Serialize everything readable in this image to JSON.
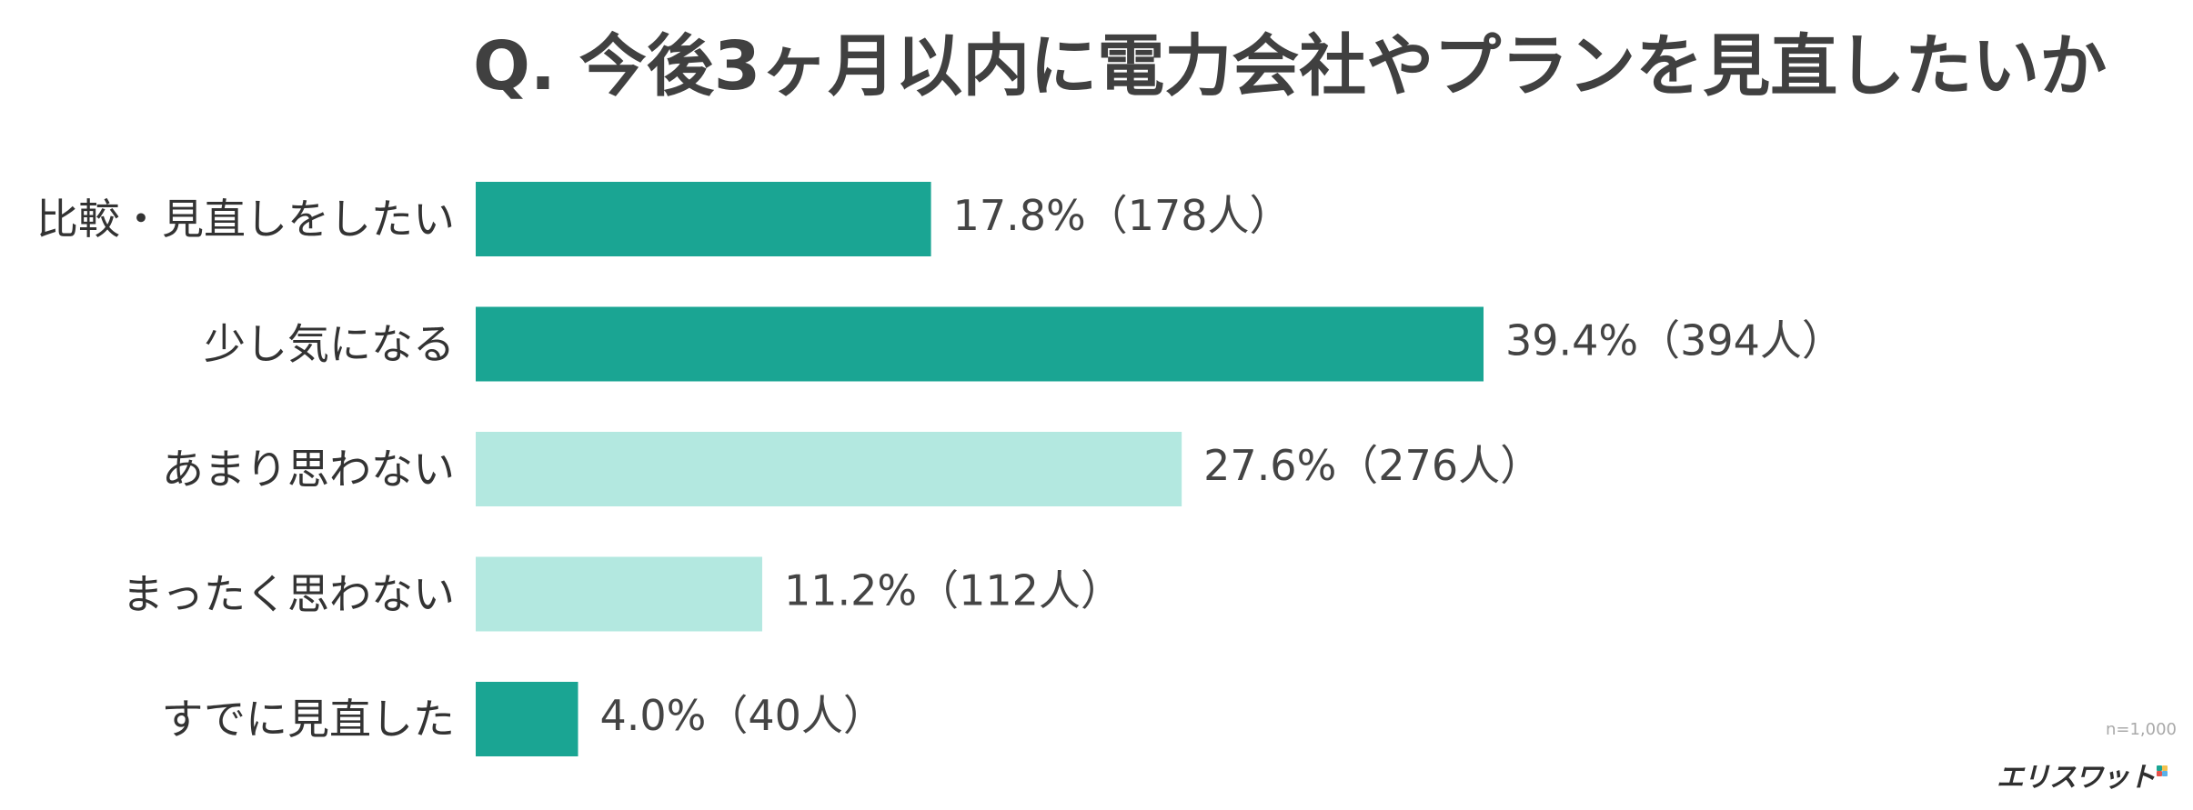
{
  "chart_data": {
    "type": "bar",
    "orientation": "horizontal",
    "title": "Q. 今後3ヶ月以内に電力会社やプランを見直したいか",
    "categories": [
      "比較・見直しをしたい",
      "少し気になる",
      "あまり思わない",
      "まったく思わない",
      "すでに見直した"
    ],
    "values": [
      17.8,
      39.4,
      27.6,
      11.2,
      4.0
    ],
    "value_labels": [
      "17.8%（178人）",
      "39.4%（394人）",
      "27.6%（276人）",
      "11.2%（112人）",
      "4.0%（40人）"
    ],
    "bar_colors": [
      "#1aa593",
      "#1aa593",
      "#b3e8e0",
      "#b3e8e0",
      "#1aa593"
    ],
    "xlim": [
      0,
      100
    ],
    "grid": false,
    "legend": "none",
    "sample_size": "n=1,000"
  },
  "brand": {
    "name": "エリスワット",
    "accent_colors": [
      "#1aa593",
      "#f2c14e",
      "#e5534b",
      "#5ab0e8"
    ]
  }
}
